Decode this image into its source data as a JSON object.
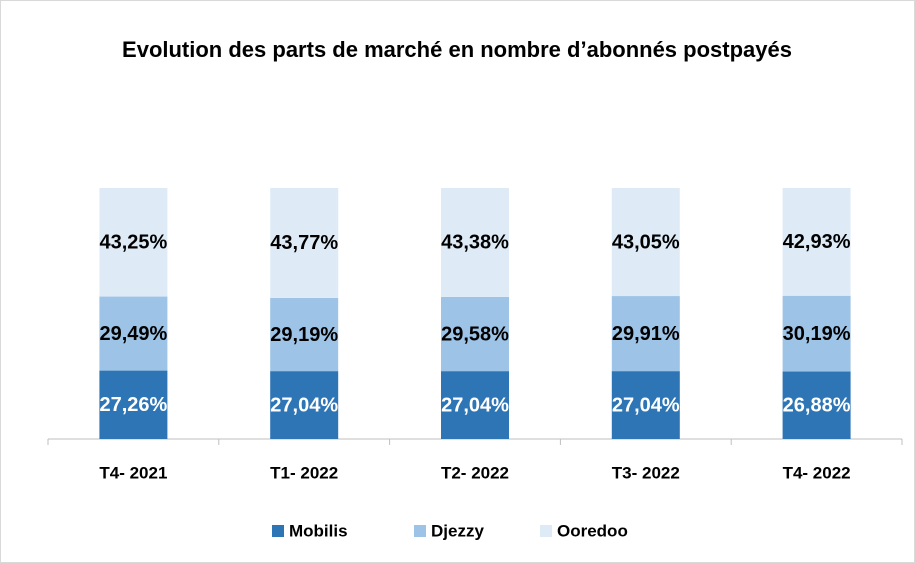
{
  "chart_data": {
    "type": "stacked_bar",
    "title": "Evolution des parts de marché en nombre d’abonnés postpayés",
    "categories": [
      "T4- 2021",
      "T1- 2022",
      "T2- 2022",
      "T3- 2022",
      "T4- 2022"
    ],
    "ylim": [
      0,
      100
    ],
    "series": [
      {
        "name": "Mobilis",
        "color": "#2e75b6",
        "values": [
          27.26,
          27.04,
          27.04,
          27.04,
          26.88
        ],
        "value_labels": [
          "27,26%",
          "27,04%",
          "27,04%",
          "27,04%",
          "26,88%"
        ]
      },
      {
        "name": "Djezzy",
        "color": "#9dc3e6",
        "values": [
          29.49,
          29.19,
          29.58,
          29.91,
          30.19
        ],
        "value_labels": [
          "29,49%",
          "29,19%",
          "29,58%",
          "29,91%",
          "30,19%"
        ]
      },
      {
        "name": "Ooredoo",
        "color": "#deebf7",
        "values": [
          43.25,
          43.77,
          43.38,
          43.05,
          42.93
        ],
        "value_labels": [
          "43,25%",
          "43,77%",
          "43,38%",
          "43,05%",
          "42,93%"
        ]
      }
    ],
    "legend": "bottom"
  }
}
